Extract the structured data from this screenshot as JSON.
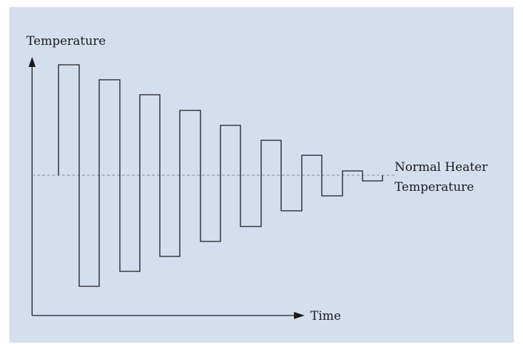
{
  "diagram": {
    "y_axis_label": "Temperature",
    "x_axis_label": "Time",
    "reference_label_line1": "Normal Heater",
    "reference_label_line2": "Temperature",
    "signal_type": "damped square-wave oscillation about normal heater temperature",
    "colors": {
      "panel_background": "#d5deed",
      "line": "#1a1a1a",
      "reference_line": "#8a8f99"
    }
  }
}
